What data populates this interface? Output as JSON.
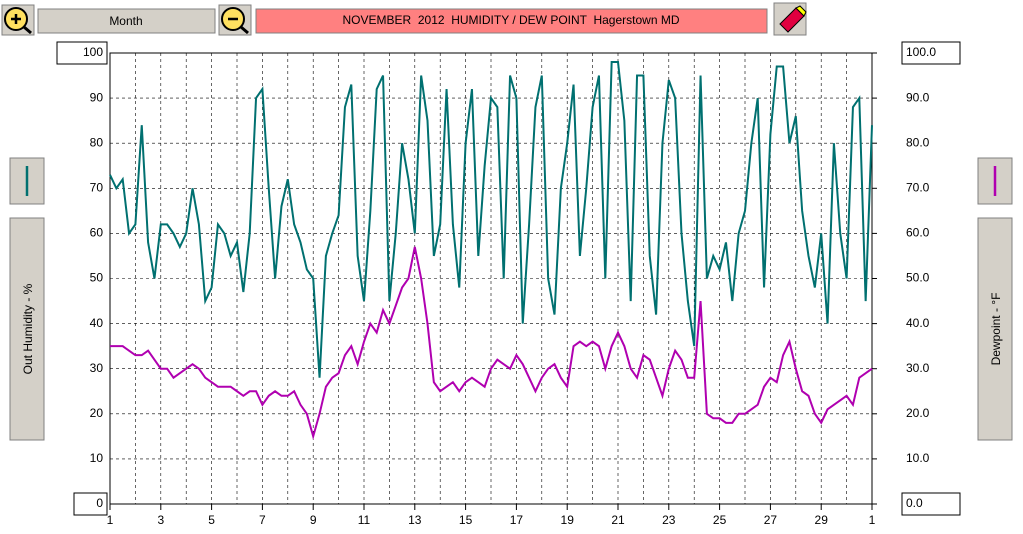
{
  "range": "Month",
  "chart_data": {
    "type": "line",
    "title": "NOVEMBER  2012  HUMIDITY / DEW POINT  Hagerstown MD",
    "x": [
      1,
      1.25,
      1.5,
      1.75,
      2,
      2.25,
      2.5,
      2.75,
      3,
      3.25,
      3.5,
      3.75,
      4,
      4.25,
      4.5,
      4.75,
      5,
      5.25,
      5.5,
      5.75,
      6,
      6.25,
      6.5,
      6.75,
      7,
      7.25,
      7.5,
      7.75,
      8,
      8.25,
      8.5,
      8.75,
      9,
      9.25,
      9.5,
      9.75,
      10,
      10.25,
      10.5,
      10.75,
      11,
      11.25,
      11.5,
      11.75,
      12,
      12.25,
      12.5,
      12.75,
      13,
      13.25,
      13.5,
      13.75,
      14,
      14.25,
      14.5,
      14.75,
      15,
      15.25,
      15.5,
      15.75,
      16,
      16.25,
      16.5,
      16.75,
      17,
      17.25,
      17.5,
      17.75,
      18,
      18.25,
      18.5,
      18.75,
      19,
      19.25,
      19.5,
      19.75,
      20,
      20.25,
      20.5,
      20.75,
      21,
      21.25,
      21.5,
      21.75,
      22,
      22.25,
      22.5,
      22.75,
      23,
      23.25,
      23.5,
      23.75,
      24,
      24.25,
      24.5,
      24.75,
      25,
      25.25,
      25.5,
      25.75,
      26,
      26.25,
      26.5,
      26.75,
      27,
      27.25,
      27.5,
      27.75,
      28,
      28.25,
      28.5,
      28.75,
      29,
      29.25,
      29.5,
      29.75,
      30,
      30.25,
      30.5,
      30.75,
      31
    ],
    "xlim": [
      1,
      31
    ],
    "xticks": [
      1,
      3,
      5,
      7,
      9,
      11,
      13,
      15,
      17,
      19,
      21,
      23,
      25,
      27,
      29,
      {
        "value": 31,
        "label": "1"
      }
    ],
    "ylim": [
      0,
      100
    ],
    "yticks": [
      100,
      90,
      80,
      70,
      60,
      50,
      40,
      30,
      20,
      10,
      0
    ],
    "y2lim": [
      0,
      100
    ],
    "y2ticks": [
      {
        "value": 100,
        "label": "100.0"
      },
      {
        "value": 90,
        "label": "90.0"
      },
      {
        "value": 80,
        "label": "80.0"
      },
      {
        "value": 70,
        "label": "70.0"
      },
      {
        "value": 60,
        "label": "60.0"
      },
      {
        "value": 50,
        "label": "50.0"
      },
      {
        "value": 40,
        "label": "40.0"
      },
      {
        "value": 30,
        "label": "30.0"
      },
      {
        "value": 20,
        "label": "20.0"
      },
      {
        "value": 10,
        "label": "10.0"
      },
      {
        "value": 0,
        "label": "0.0"
      }
    ],
    "grid": true,
    "series": [
      {
        "name": "Out Humidity - %",
        "color": "#007070",
        "values": [
          73,
          70,
          72,
          60,
          62,
          84,
          58,
          50,
          62,
          62,
          60,
          57,
          60,
          70,
          62,
          45,
          48,
          62,
          60,
          55,
          58,
          47,
          60,
          90,
          92,
          70,
          50,
          66,
          72,
          62,
          58,
          52,
          50,
          28,
          55,
          60,
          64,
          88,
          93,
          55,
          45,
          65,
          92,
          95,
          45,
          60,
          80,
          72,
          60,
          95,
          85,
          55,
          62,
          92,
          62,
          48,
          80,
          92,
          55,
          75,
          90,
          88,
          50,
          95,
          90,
          40,
          62,
          88,
          95,
          50,
          42,
          70,
          80,
          93,
          55,
          70,
          88,
          95,
          50,
          98,
          98,
          85,
          45,
          95,
          95,
          55,
          42,
          80,
          94,
          90,
          60,
          45,
          35,
          95,
          50,
          55,
          52,
          58,
          45,
          60,
          65,
          80,
          90,
          48,
          82,
          97,
          97,
          80,
          86,
          65,
          55,
          48,
          60,
          40,
          80,
          60,
          50,
          88,
          90,
          45,
          84
        ]
      },
      {
        "name": "Dewpoint - °F",
        "color": "#b000b0",
        "axis": "y2",
        "values": [
          35,
          35,
          35,
          34,
          33,
          33,
          34,
          32,
          30,
          30,
          28,
          29,
          30,
          31,
          30,
          28,
          27,
          26,
          26,
          26,
          25,
          24,
          25,
          25,
          22,
          24,
          25,
          24,
          24,
          25,
          22,
          20,
          15,
          20,
          26,
          28,
          29,
          33,
          35,
          31,
          36,
          40,
          38,
          43,
          40,
          44,
          48,
          50,
          57,
          50,
          40,
          27,
          25,
          26,
          27,
          25,
          27,
          28,
          27,
          26,
          30,
          32,
          31,
          30,
          33,
          31,
          28,
          25,
          28,
          30,
          31,
          28,
          26,
          35,
          36,
          35,
          36,
          35,
          30,
          35,
          38,
          35,
          30,
          28,
          33,
          32,
          28,
          24,
          30,
          34,
          32,
          28,
          28,
          45,
          20,
          19,
          19,
          18,
          18,
          20,
          20,
          21,
          22,
          26,
          28,
          27,
          33,
          36,
          30,
          25,
          24,
          20,
          18,
          21,
          22,
          23,
          24,
          22,
          28,
          29,
          30
        ]
      }
    ]
  }
}
